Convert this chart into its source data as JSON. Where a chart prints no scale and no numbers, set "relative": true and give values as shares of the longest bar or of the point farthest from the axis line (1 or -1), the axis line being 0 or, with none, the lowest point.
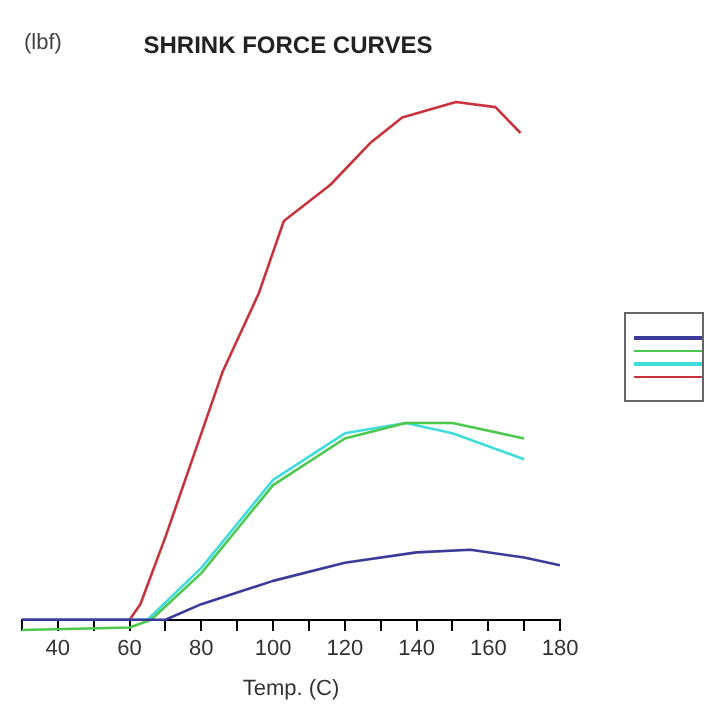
{
  "chart_data": {
    "type": "line",
    "title": "SHRINK FORCE CURVES",
    "xlabel": "Temp. (C)",
    "ylabel": "(lbf)",
    "relative": true,
    "grid": false,
    "marker": "none",
    "line_style": "solid",
    "xlim": [
      30,
      180
    ],
    "xticks": [
      {
        "value": 30,
        "label": null
      },
      40,
      {
        "value": 50,
        "label": null
      },
      60,
      {
        "value": 70,
        "label": null
      },
      80,
      {
        "value": 90,
        "label": null
      },
      100,
      {
        "value": 110,
        "label": null
      },
      120,
      {
        "value": 130,
        "label": null
      },
      140,
      {
        "value": 150,
        "label": null
      },
      160,
      {
        "value": 170,
        "label": null
      },
      180
    ],
    "series": [
      {
        "color": "#3a3a9a",
        "x": [
          30,
          60,
          70,
          80,
          100,
          120,
          140,
          155,
          170,
          180
        ],
        "values": [
          0,
          0,
          0,
          0.03,
          0.075,
          0.11,
          0.13,
          0.135,
          0.12,
          0.105
        ]
      },
      {
        "color": "#4cc84c",
        "x": [
          30,
          60,
          66,
          80,
          100,
          120,
          137,
          150,
          170
        ],
        "values": [
          -0.02,
          -0.015,
          0,
          0.09,
          0.26,
          0.35,
          0.38,
          0.38,
          0.35
        ]
      },
      {
        "color": "#40dcdc",
        "x": [
          30,
          60,
          65,
          80,
          100,
          120,
          137,
          150,
          170
        ],
        "values": [
          0,
          0,
          0,
          0.1,
          0.27,
          0.36,
          0.38,
          0.36,
          0.31
        ]
      },
      {
        "color": "#c8323c",
        "x": [
          30,
          60,
          63,
          70,
          80,
          86,
          96,
          103,
          116,
          127,
          136,
          151,
          162,
          169
        ],
        "values": [
          0,
          0,
          0.03,
          0.16,
          0.36,
          0.48,
          0.63,
          0.77,
          0.84,
          0.92,
          0.97,
          1,
          0.99,
          0.94
        ]
      }
    ]
  }
}
